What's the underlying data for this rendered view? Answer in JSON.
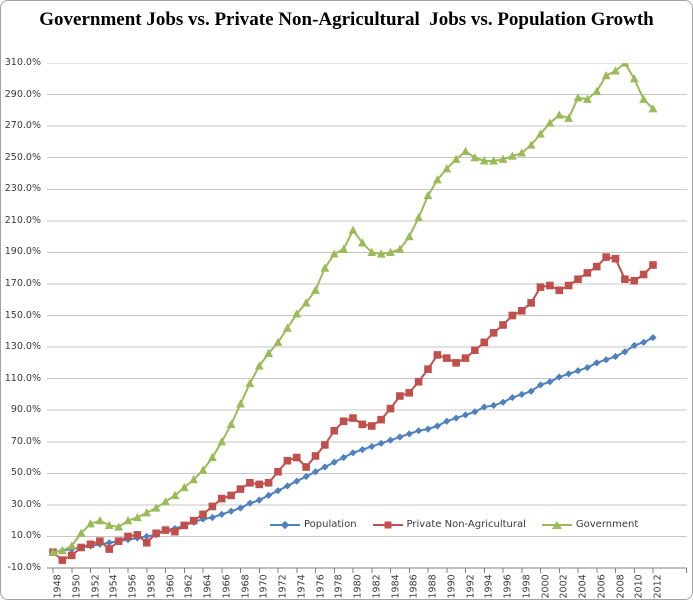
{
  "title": "Government Jobs vs. Private Non-Agricultural  Jobs vs. Population Growth",
  "colors": {
    "population": "#4F81BD",
    "private": "#C0504D",
    "government": "#9BBB59",
    "gridline": "#C6C6C6",
    "axis": "#808080",
    "label_text": "#3a3a3a",
    "background": "#FFFFFF"
  },
  "chart_data": {
    "type": "line",
    "title": "Government Jobs vs. Private Non-Agricultural  Jobs vs. Population Growth",
    "xlabel": "",
    "ylabel": "",
    "x_start_year": 1948,
    "x_end_year": 2012,
    "x_tick_labels": [
      "1948",
      "1950",
      "1952",
      "1954",
      "1956",
      "1958",
      "1960",
      "1962",
      "1964",
      "1966",
      "1968",
      "1970",
      "1972",
      "1974",
      "1976",
      "1978",
      "1980",
      "1982",
      "1984",
      "1986",
      "1988",
      "1990",
      "1992",
      "1994",
      "1996",
      "1998",
      "2000",
      "2002",
      "2004",
      "2006",
      "2008",
      "2010",
      "2012"
    ],
    "y_axis": {
      "min": -10,
      "max": 310,
      "step": 20,
      "unit": "%",
      "tick_labels": [
        "310.0%",
        "290.0%",
        "270.0%",
        "250.0%",
        "230.0%",
        "210.0%",
        "190.0%",
        "170.0%",
        "150.0%",
        "130.0%",
        "110.0%",
        "90.0%",
        "70.0%",
        "50.0%",
        "30.0%",
        "10.0%",
        "-10.0%"
      ]
    },
    "grid": true,
    "legend_position": "bottom-inside",
    "series": [
      {
        "name": "Population",
        "color": "#4F81BD",
        "marker": "diamond",
        "values": [
          0,
          1,
          2,
          3,
          4,
          5,
          6,
          7,
          8,
          9,
          10,
          11,
          14,
          15,
          17,
          19,
          21,
          22,
          24,
          26,
          28,
          31,
          33,
          36,
          39,
          42,
          45,
          48,
          51,
          54,
          57,
          60,
          63,
          65,
          67,
          69,
          71,
          73,
          75,
          77,
          78,
          80,
          83,
          85,
          87,
          89,
          92,
          93,
          95,
          98,
          100,
          102,
          106,
          108,
          111,
          113,
          115,
          117,
          120,
          122,
          124,
          127,
          131,
          133,
          136
        ]
      },
      {
        "name": "Private Non-Agricultural",
        "color": "#C0504D",
        "marker": "square",
        "values": [
          0,
          -5,
          -2,
          3,
          5,
          7,
          2,
          7,
          10,
          11,
          6,
          12,
          14,
          13,
          17,
          20,
          24,
          29,
          34,
          36,
          40,
          44,
          43,
          44,
          51,
          58,
          60,
          54,
          61,
          68,
          77,
          83,
          85,
          81,
          80,
          84,
          91,
          99,
          101,
          108,
          116,
          125,
          123,
          120,
          123,
          128,
          133,
          139,
          144,
          150,
          153,
          158,
          168,
          169,
          166,
          169,
          173,
          177,
          181,
          187,
          186,
          173,
          172,
          176,
          182
        ]
      },
      {
        "name": "Government",
        "color": "#9BBB59",
        "marker": "triangle",
        "values": [
          0,
          1,
          4,
          12,
          18,
          20,
          17,
          16,
          20,
          22,
          25,
          28,
          32,
          36,
          41,
          46,
          52,
          60,
          70,
          81,
          94,
          107,
          118,
          126,
          133,
          142,
          151,
          158,
          166,
          180,
          189,
          192,
          204,
          196,
          190,
          189,
          190,
          192,
          200,
          212,
          226,
          236,
          243,
          249,
          254,
          250,
          248,
          248,
          249,
          251,
          253,
          258,
          265,
          272,
          277,
          275,
          288,
          287,
          292,
          302,
          305,
          310,
          300,
          287,
          281
        ]
      }
    ]
  }
}
